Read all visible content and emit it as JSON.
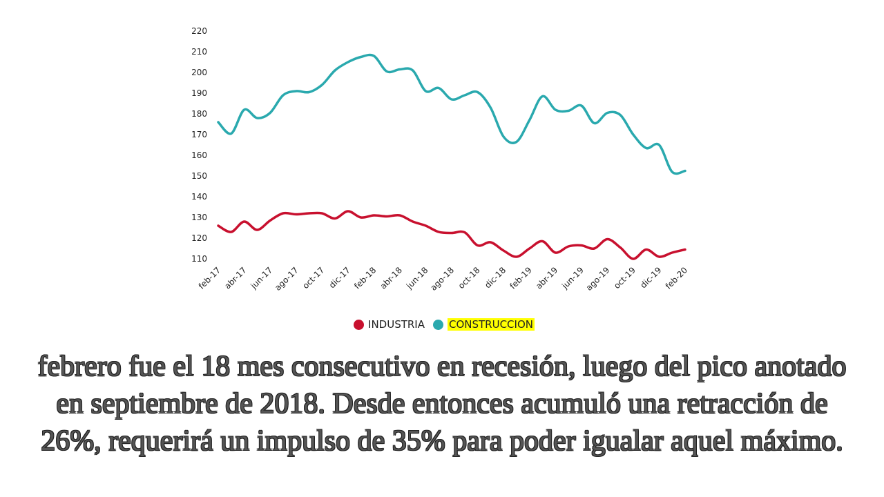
{
  "chart_data": {
    "type": "line",
    "title": "",
    "xlabel": "",
    "ylabel": "",
    "ylim": [
      110,
      220
    ],
    "yticks": [
      "220",
      "210",
      "200",
      "190",
      "180",
      "170",
      "160",
      "150",
      "140",
      "130",
      "120",
      "110"
    ],
    "x": [
      "feb-17",
      "mar-17",
      "abr-17",
      "may-17",
      "jun-17",
      "jul-17",
      "ago-17",
      "sep-17",
      "oct-17",
      "nov-17",
      "dic-17",
      "ene-18",
      "feb-18",
      "mar-18",
      "abr-18",
      "may-18",
      "jun-18",
      "jul-18",
      "ago-18",
      "sep-18",
      "oct-18",
      "nov-18",
      "dic-18",
      "ene-19",
      "feb-19",
      "mar-19",
      "abr-19",
      "may-19",
      "jun-19",
      "jul-19",
      "ago-19",
      "sep-19",
      "oct-19",
      "nov-19",
      "dic-19",
      "ene-20",
      "feb-20"
    ],
    "xticks": [
      "feb-17",
      "abr-17",
      "jun-17",
      "ago-17",
      "oct-17",
      "dic-17",
      "feb-18",
      "abr-18",
      "jun-18",
      "ago-18",
      "oct-18",
      "dic-18",
      "feb-19",
      "abr-19",
      "jun-19",
      "ago-19",
      "oct-19",
      "dic-19",
      "feb-20"
    ],
    "grid": false,
    "legend_position": "bottom",
    "series": [
      {
        "name": "INDUSTRIA",
        "color": "#c8102e",
        "values": [
          126,
          123,
          128,
          124,
          128.5,
          132,
          131.5,
          132,
          132,
          129.5,
          133,
          130,
          131,
          130.5,
          131,
          128,
          126,
          123,
          122.5,
          122.8,
          116.5,
          118,
          114,
          111,
          115,
          118.5,
          113,
          116,
          116.5,
          115,
          119.5,
          115.5,
          110,
          114.5,
          111,
          113,
          114.5
        ]
      },
      {
        "name": "CONSTRUCCION",
        "color": "#2aa9ae",
        "highlight": "#ffff00",
        "values": [
          176,
          170.5,
          182,
          178,
          180.5,
          189,
          191,
          190.5,
          194,
          201,
          205,
          207.5,
          208,
          200.5,
          201.5,
          201,
          191,
          192.5,
          187,
          189,
          190.5,
          183,
          169,
          166.5,
          177,
          188.5,
          182,
          181.5,
          184,
          175.5,
          180.5,
          179.5,
          170,
          163.5,
          165,
          152,
          152.5
        ]
      }
    ]
  },
  "caption": [
    "febrero fue el 18 mes consecutivo en recesión, luego del pico anotado",
    "en septiembre de 2018. Desde entonces acumuló una retracción de",
    "26%, requerirá un impulso de 35% para poder igualar aquel máximo."
  ]
}
